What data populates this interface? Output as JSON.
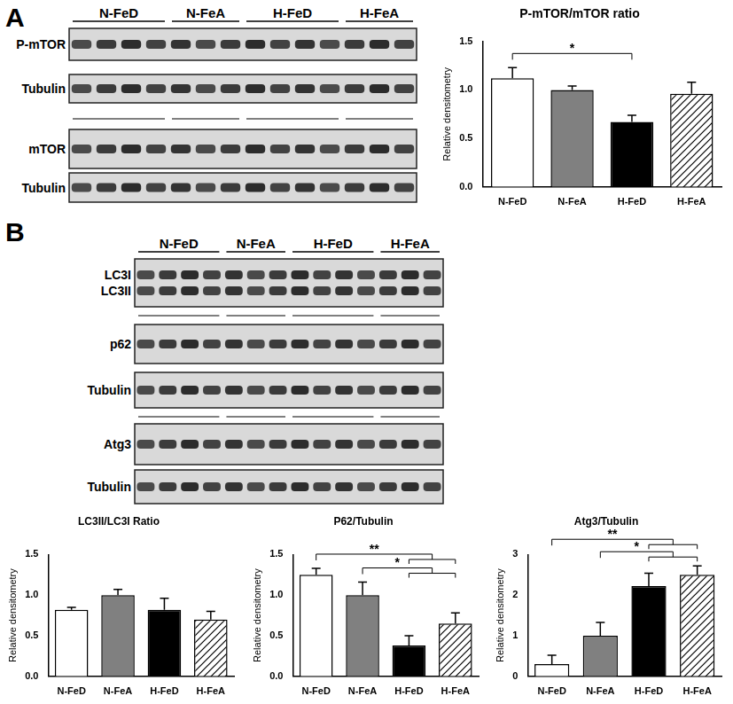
{
  "panel_labels": [
    "A",
    "B"
  ],
  "blots": [
    {
      "panel": "A",
      "groups": [
        {
          "label": "N-FeD",
          "lanes": 4
        },
        {
          "label": "N-FeA",
          "lanes": 3
        },
        {
          "label": "H-FeD",
          "lanes": 4
        },
        {
          "label": "H-FeA",
          "lanes": 3
        }
      ],
      "strips": [
        {
          "labels": [
            "P-mTOR"
          ]
        },
        {
          "labels": [
            "Tubulin"
          ]
        },
        {
          "labels": [
            "mTOR"
          ]
        },
        {
          "labels": [
            "Tubulin"
          ]
        }
      ]
    },
    {
      "panel": "B",
      "groups": [
        {
          "label": "N-FeD",
          "lanes": 4
        },
        {
          "label": "N-FeA",
          "lanes": 3
        },
        {
          "label": "H-FeD",
          "lanes": 4
        },
        {
          "label": "H-FeA",
          "lanes": 3
        }
      ],
      "strips": [
        {
          "labels": [
            "LC3I",
            "LC3II"
          ]
        },
        {
          "labels": [
            "p62"
          ]
        },
        {
          "labels": [
            "Tubulin"
          ]
        },
        {
          "labels": [
            "Atg3"
          ]
        },
        {
          "labels": [
            "Tubulin"
          ]
        }
      ]
    }
  ],
  "chart_data": [
    {
      "type": "bar",
      "title": "P-mTOR/mTOR ratio",
      "y_label": "Relative densitometry",
      "categories": [
        "N-FeD",
        "N-FeA",
        "H-FeD",
        "H-FeA"
      ],
      "values": [
        1.12,
        1.0,
        0.67,
        0.96
      ],
      "errors": [
        0.11,
        0.04,
        0.07,
        0.12
      ],
      "colors": [
        "#ffffff",
        "#808080",
        "#000000",
        "#ffffff"
      ],
      "ylim": [
        0,
        1.5
      ],
      "yticks": [
        {
          "value": 0,
          "label": "0.0"
        },
        {
          "value": 0.5,
          "label": "0.5"
        },
        {
          "value": 1,
          "label": "1.0"
        },
        {
          "value": 1.5,
          "label": "1.5"
        }
      ],
      "grid": false,
      "annotations": [
        {
          "text": "*",
          "from": "N-FeD",
          "to": [
            "H-FeD"
          ]
        }
      ]
    },
    {
      "type": "bar",
      "title": "LC3II/LC3I Ratio",
      "y_label": "Relative densitometry",
      "categories": [
        "N-FeD",
        "N-FeA",
        "H-FeD",
        "H-FeA"
      ],
      "values": [
        0.82,
        1.0,
        0.82,
        0.7
      ],
      "errors": [
        0.03,
        0.07,
        0.14,
        0.1
      ],
      "colors": [
        "#ffffff",
        "#808080",
        "#000000",
        "#ffffff"
      ],
      "ylim": [
        0,
        1.5
      ],
      "yticks": [
        {
          "value": 0,
          "label": "0.0"
        },
        {
          "value": 0.5,
          "label": "0.5"
        },
        {
          "value": 1,
          "label": "1.0"
        },
        {
          "value": 1.5,
          "label": "1.5"
        }
      ],
      "grid": false,
      "annotations": []
    },
    {
      "type": "bar",
      "title": "P62/Tubulin",
      "y_label": "Relative densitometry",
      "categories": [
        "N-FeD",
        "N-FeA",
        "H-FeD",
        "H-FeA"
      ],
      "values": [
        1.25,
        1.0,
        0.38,
        0.65
      ],
      "errors": [
        0.08,
        0.16,
        0.12,
        0.13
      ],
      "colors": [
        "#ffffff",
        "#808080",
        "#000000",
        "#ffffff"
      ],
      "ylim": [
        0,
        1.5
      ],
      "yticks": [
        {
          "value": 0,
          "label": "0.0"
        },
        {
          "value": 0.5,
          "label": "0.5"
        },
        {
          "value": 1,
          "label": "1.0"
        },
        {
          "value": 1.5,
          "label": "1.5"
        }
      ],
      "grid": false,
      "annotations": [
        {
          "text": "*",
          "from": "N-FeA",
          "to": [
            "H-FeD",
            "H-FeA"
          ]
        },
        {
          "text": "**",
          "from": "N-FeD",
          "to": [
            "H-FeD",
            "H-FeA"
          ]
        }
      ]
    },
    {
      "type": "bar",
      "title": "Atg3/Tubulin",
      "y_label": "Relative densitometry",
      "categories": [
        "N-FeD",
        "N-FeA",
        "H-FeD",
        "H-FeA"
      ],
      "values": [
        0.3,
        1.0,
        2.22,
        2.5
      ],
      "errors": [
        0.22,
        0.33,
        0.32,
        0.22
      ],
      "colors": [
        "#ffffff",
        "#808080",
        "#000000",
        "#ffffff"
      ],
      "ylim": [
        0,
        3
      ],
      "yticks": [
        0,
        1,
        2,
        3
      ],
      "grid": false,
      "annotations": [
        {
          "text": "*",
          "from": "N-FeA",
          "to": [
            "H-FeD",
            "H-FeA"
          ]
        },
        {
          "text": "**",
          "from": "N-FeD",
          "to": [
            "H-FeD",
            "H-FeA"
          ]
        }
      ]
    }
  ]
}
